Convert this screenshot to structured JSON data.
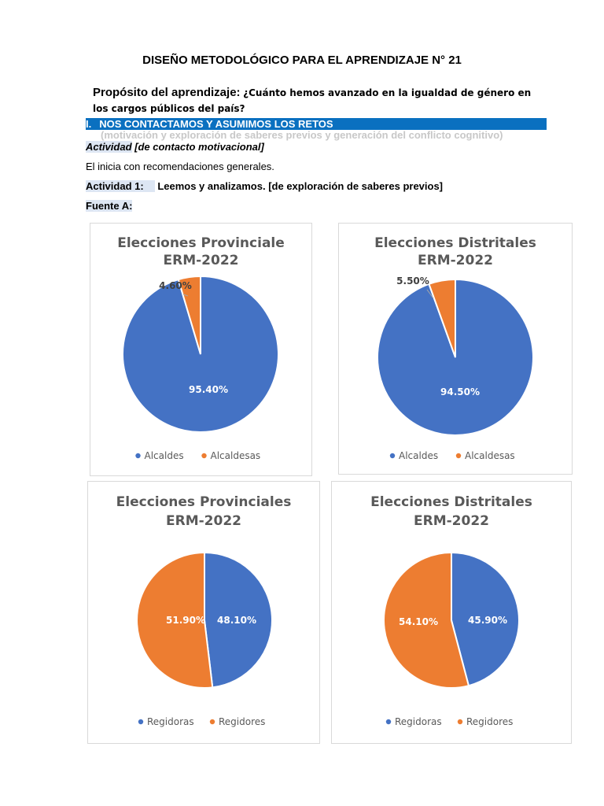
{
  "doc": {
    "title": "DISEÑO METODOLÓGICO PARA EL APRENDIZAJE N° 21",
    "purpose_label": "Propósito del aprendizaje:",
    "purpose_text": "¿Cuánto hemos avanzado en la igualdad de género en los cargos públicos del país?",
    "section_num": "I.",
    "section_title": "NOS CONTACTAMOS Y ASUMIMOS LOS RETOS",
    "section_note": "(motivación y exploración de saberes previos y generación del conflicto cognitivo)",
    "activity0_label": "Actividad",
    "activity0_text": "[de contacto motivacional]",
    "paragraph": "El inicia con recomendaciones generales.",
    "activity1_label": "Actividad 1:",
    "activity1_text": "Leemos y analizamos. [de exploración de saberes previos]",
    "source_label": "Fuente A:"
  },
  "colors": {
    "blue": "#4472c4",
    "orange": "#ed7d31",
    "heading_bg": "#0a70c0"
  },
  "chart_data": [
    {
      "type": "pie",
      "title_line1": "Elecciones Provinciale",
      "title_line2": "ERM-2022",
      "categories": [
        "Alcaldes",
        "Alcaldesas"
      ],
      "values": [
        95.4,
        4.6
      ],
      "labels": [
        "95.40%",
        "4.60%"
      ],
      "legend": "bottom"
    },
    {
      "type": "pie",
      "title_line1": "Elecciones Distritales",
      "title_line2": "ERM-2022",
      "categories": [
        "Alcaldes",
        "Alcaldesas"
      ],
      "values": [
        94.5,
        5.5
      ],
      "labels": [
        "94.50%",
        "5.50%"
      ],
      "legend": "bottom"
    },
    {
      "type": "pie",
      "title_line1": "Elecciones Provinciales",
      "title_line2": "ERM-2022",
      "categories": [
        "Regidoras",
        "Regidores"
      ],
      "values": [
        48.1,
        51.9
      ],
      "labels": [
        "48.10%",
        "51.90%"
      ],
      "legend": "bottom"
    },
    {
      "type": "pie",
      "title_line1": "Elecciones Distritales",
      "title_line2": "ERM-2022",
      "categories": [
        "Regidoras",
        "Regidores"
      ],
      "values": [
        45.9,
        54.1
      ],
      "labels": [
        "45.90%",
        "54.10%"
      ],
      "legend": "bottom"
    }
  ]
}
